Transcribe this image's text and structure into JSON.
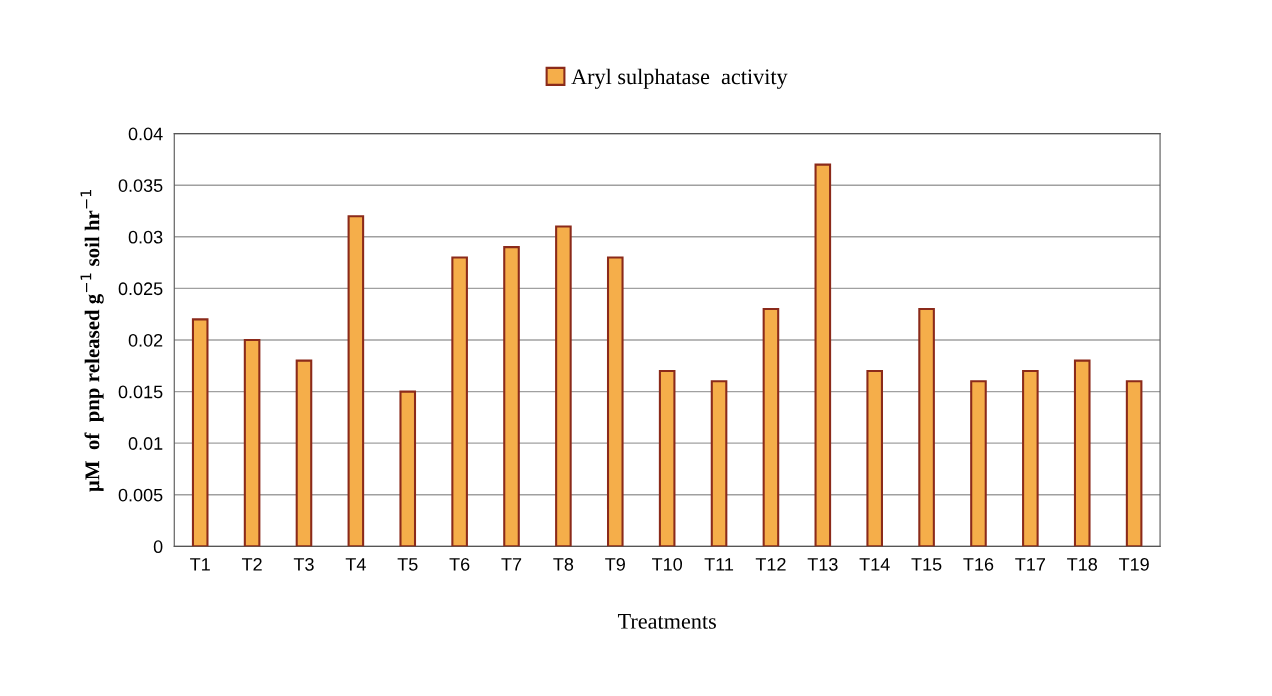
{
  "chart_data": {
    "type": "bar",
    "xlabel": "Treatments",
    "ylabel": "µM  of  pnp released g$^{−1}$ soil hr$^{−1}$",
    "categories": [
      "T1",
      "T2",
      "T3",
      "T4",
      "T5",
      "T6",
      "T7",
      "T8",
      "T9",
      "T10",
      "T11",
      "T12",
      "T13",
      "T14",
      "T15",
      "T16",
      "T17",
      "T18",
      "T19"
    ],
    "series": [
      {
        "name": "Aryl sulphatase  activity",
        "color": "#f5ae4a",
        "values": [
          0.022,
          0.02,
          0.018,
          0.032,
          0.015,
          0.028,
          0.029,
          0.031,
          0.028,
          0.017,
          0.016,
          0.023,
          0.037,
          0.017,
          0.023,
          0.016,
          0.017,
          0.018,
          0.016
        ]
      }
    ],
    "ylim": [
      0,
      0.04
    ],
    "yticks": [
      {
        "value": 0,
        "label": "0"
      },
      0.005,
      0.01,
      0.015,
      0.02,
      0.025,
      0.03,
      0.035,
      0.04
    ],
    "grid": "y",
    "legend": "top"
  }
}
